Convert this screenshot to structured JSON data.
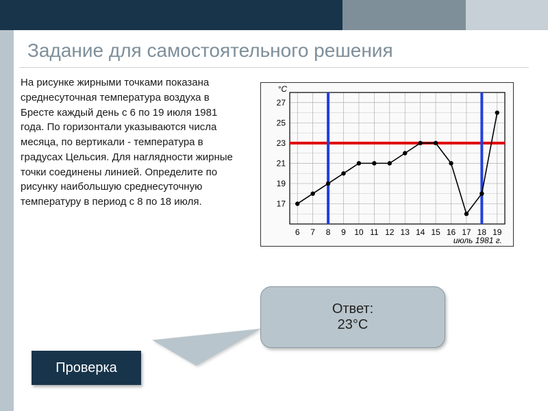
{
  "title": "Задание для самостоятельного решения",
  "bodytext": "На рисунке жирными точками показана среднесуточная температура воздуха в Бресте каждый день с 6 по 19 июля 1981 года. По горизонтали указываются числа месяца, по вертикали - температура в градусах Цельсия. Для наглядности жирные точки соединены линией. Определите по рисунку наибольшую среднесуточную температуру в период с 8 по 18 июля.",
  "answer_label": "Ответ:",
  "answer_value": "23°C",
  "check_label": "Проверка",
  "colors": {
    "topbar_dark": "#18344a",
    "topbar_mid": "#7e8f9a",
    "topbar_light": "#c7d0d6",
    "sidebar": "#b9c5cc",
    "answer_bg": "#b9c5cc",
    "title_color": "#7e8f9a",
    "highlight_red": "#e00000",
    "highlight_blue": "#2040e0",
    "grid_color": "#b0b0b0",
    "axis_color": "#000000",
    "line_color": "#000000"
  },
  "chart": {
    "type": "line",
    "y_unit": "°C",
    "x_caption": "июль 1981 г.",
    "x_values": [
      6,
      7,
      8,
      9,
      10,
      11,
      12,
      13,
      14,
      15,
      16,
      17,
      18,
      19
    ],
    "y_values": [
      17,
      18,
      19,
      20,
      21,
      21,
      21,
      22,
      23,
      23,
      21,
      16,
      18,
      26
    ],
    "y_ticks": [
      17,
      19,
      21,
      23,
      25,
      27
    ],
    "x_ticks": [
      6,
      7,
      8,
      9,
      10,
      11,
      12,
      13,
      14,
      15,
      16,
      17,
      18,
      19
    ],
    "ylim": [
      15,
      28
    ],
    "xlim": [
      5.5,
      19.5
    ],
    "highlight_y": 23,
    "highlight_x_start": 8,
    "highlight_x_end": 18,
    "marker_radius": 3.2,
    "line_width": 1.6,
    "highlight_line_width": 4,
    "tick_fontsize": 12,
    "caption_fontsize": 12
  }
}
